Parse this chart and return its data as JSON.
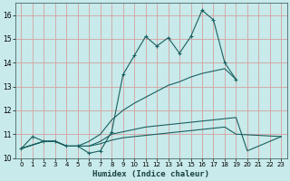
{
  "xlabel": "Humidex (Indice chaleur)",
  "xlim": [
    -0.5,
    23.5
  ],
  "ylim": [
    10,
    16.5
  ],
  "yticks": [
    10,
    11,
    12,
    13,
    14,
    15,
    16
  ],
  "xticks": [
    0,
    1,
    2,
    3,
    4,
    5,
    6,
    7,
    8,
    9,
    10,
    11,
    12,
    13,
    14,
    15,
    16,
    17,
    18,
    19,
    20,
    21,
    22,
    23
  ],
  "bg_color": "#c8eaea",
  "grid_color": "#d4a0a0",
  "line_color": "#1a6060",
  "line1_x": [
    0,
    1,
    2,
    3,
    4,
    5,
    6,
    7,
    8,
    9,
    10,
    11,
    12,
    13,
    14,
    15,
    16,
    17,
    18,
    19
  ],
  "line1_y": [
    10.4,
    10.9,
    10.7,
    10.7,
    10.5,
    10.5,
    10.2,
    10.3,
    11.1,
    13.5,
    14.3,
    15.1,
    14.7,
    15.05,
    14.4,
    15.1,
    16.2,
    15.8,
    14.0,
    13.3
  ],
  "line2_x": [
    0,
    2,
    3,
    4,
    5,
    6,
    7,
    8,
    9,
    10,
    11,
    12,
    13,
    14,
    15,
    16,
    17,
    18,
    19
  ],
  "line2_y": [
    10.4,
    10.7,
    10.7,
    10.5,
    10.5,
    10.7,
    11.0,
    11.6,
    12.0,
    12.3,
    12.55,
    12.8,
    13.05,
    13.2,
    13.4,
    13.55,
    13.65,
    13.75,
    13.3
  ],
  "line3_x": [
    0,
    2,
    3,
    4,
    5,
    6,
    7,
    8,
    9,
    10,
    11,
    12,
    13,
    14,
    15,
    16,
    17,
    18,
    19,
    20,
    21,
    23
  ],
  "line3_y": [
    10.4,
    10.7,
    10.7,
    10.5,
    10.5,
    10.5,
    10.7,
    11.0,
    11.1,
    11.2,
    11.3,
    11.35,
    11.4,
    11.45,
    11.5,
    11.55,
    11.6,
    11.65,
    11.7,
    10.3,
    10.5,
    10.9
  ],
  "line4_x": [
    0,
    2,
    3,
    4,
    5,
    6,
    7,
    8,
    9,
    10,
    11,
    12,
    13,
    14,
    15,
    16,
    17,
    18,
    19,
    23
  ],
  "line4_y": [
    10.4,
    10.7,
    10.7,
    10.5,
    10.5,
    10.5,
    10.6,
    10.75,
    10.85,
    10.9,
    10.95,
    11.0,
    11.05,
    11.1,
    11.15,
    11.2,
    11.25,
    11.3,
    11.0,
    10.9
  ]
}
